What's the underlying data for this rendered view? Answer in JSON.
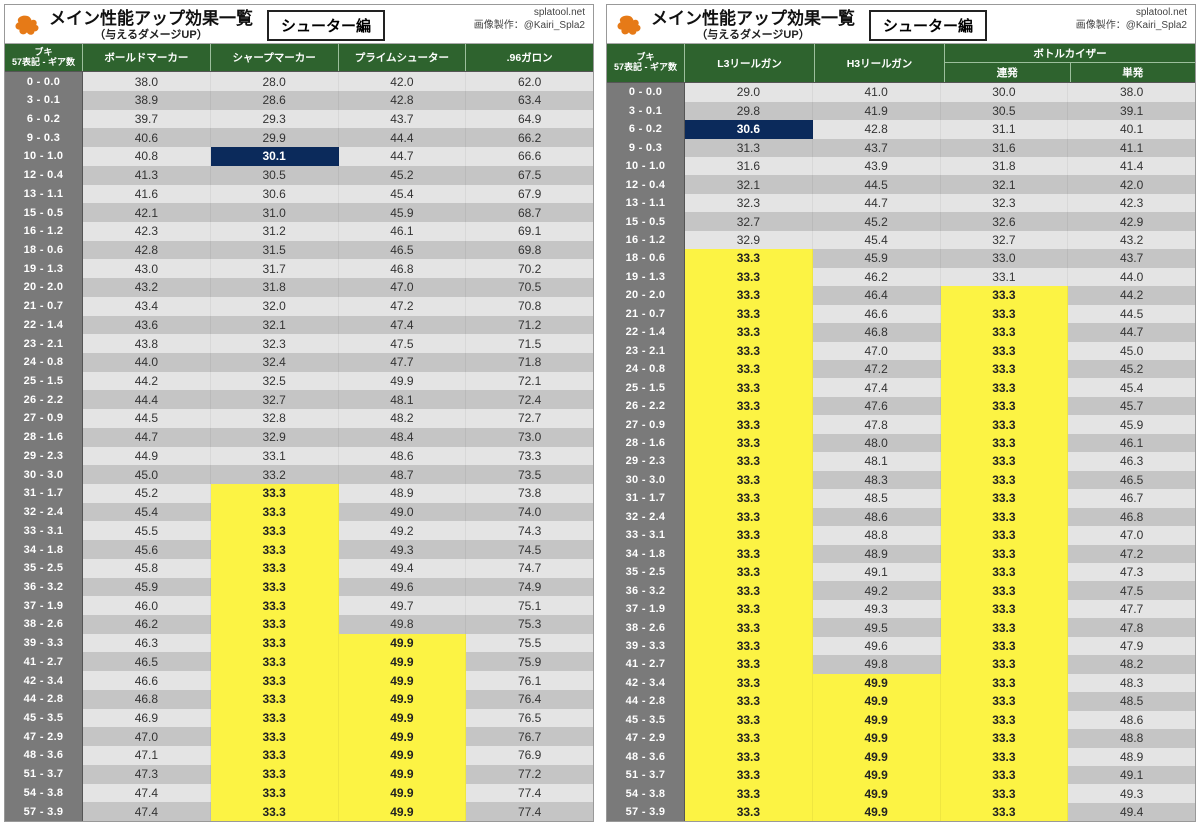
{
  "meta": {
    "title": "メイン性能アップ効果一覧",
    "subtitle": "（与えるダメージUP）",
    "category": "シューター編",
    "site": "splatool.net",
    "credit": "画像製作：@Kairi_Spla2",
    "buki_label": "ブキ",
    "key_header": "57表記 - ギア数",
    "highlight_yellow": "#fcf344",
    "highlight_navy": "#0b2a5b",
    "header_green": "#2e632e",
    "row_light": "#e4e4e4",
    "row_dark": "#c5c5c5",
    "key_bg": "#7a7a7a"
  },
  "keys": [
    "0 - 0.0",
    "3 - 0.1",
    "6 - 0.2",
    "9 - 0.3",
    "10 - 1.0",
    "12 - 0.4",
    "13 - 1.1",
    "15 - 0.5",
    "16 - 1.2",
    "18 - 0.6",
    "19 - 1.3",
    "20 - 2.0",
    "21 - 0.7",
    "22 - 1.4",
    "23 - 2.1",
    "24 - 0.8",
    "25 - 1.5",
    "26 - 2.2",
    "27 - 0.9",
    "28 - 1.6",
    "29 - 2.3",
    "30 - 3.0",
    "31 - 1.7",
    "32 - 2.4",
    "33 - 3.1",
    "34 - 1.8",
    "35 - 2.5",
    "36 - 3.2",
    "37 - 1.9",
    "38 - 2.6",
    "39 - 3.3",
    "41 - 2.7",
    "42 - 3.4",
    "44 - 2.8",
    "45 - 3.5",
    "47 - 2.9",
    "48 - 3.6",
    "51 - 3.7",
    "54 - 3.8",
    "57 - 3.9"
  ],
  "left": {
    "columns": [
      "ボールドマーカー",
      "シャープマーカー",
      "プライムシューター",
      ".96ガロン"
    ],
    "data": [
      [
        [
          "38.0",
          ""
        ],
        [
          "28.0",
          ""
        ],
        [
          "42.0",
          ""
        ],
        [
          "62.0",
          ""
        ]
      ],
      [
        [
          "38.9",
          ""
        ],
        [
          "28.6",
          ""
        ],
        [
          "42.8",
          ""
        ],
        [
          "63.4",
          ""
        ]
      ],
      [
        [
          "39.7",
          ""
        ],
        [
          "29.3",
          ""
        ],
        [
          "43.7",
          ""
        ],
        [
          "64.9",
          ""
        ]
      ],
      [
        [
          "40.6",
          ""
        ],
        [
          "29.9",
          ""
        ],
        [
          "44.4",
          ""
        ],
        [
          "66.2",
          ""
        ]
      ],
      [
        [
          "40.8",
          ""
        ],
        [
          "30.1",
          "navy"
        ],
        [
          "44.7",
          ""
        ],
        [
          "66.6",
          ""
        ]
      ],
      [
        [
          "41.3",
          ""
        ],
        [
          "30.5",
          ""
        ],
        [
          "45.2",
          ""
        ],
        [
          "67.5",
          ""
        ]
      ],
      [
        [
          "41.6",
          ""
        ],
        [
          "30.6",
          ""
        ],
        [
          "45.4",
          ""
        ],
        [
          "67.9",
          ""
        ]
      ],
      [
        [
          "42.1",
          ""
        ],
        [
          "31.0",
          ""
        ],
        [
          "45.9",
          ""
        ],
        [
          "68.7",
          ""
        ]
      ],
      [
        [
          "42.3",
          ""
        ],
        [
          "31.2",
          ""
        ],
        [
          "46.1",
          ""
        ],
        [
          "69.1",
          ""
        ]
      ],
      [
        [
          "42.8",
          ""
        ],
        [
          "31.5",
          ""
        ],
        [
          "46.5",
          ""
        ],
        [
          "69.8",
          ""
        ]
      ],
      [
        [
          "43.0",
          ""
        ],
        [
          "31.7",
          ""
        ],
        [
          "46.8",
          ""
        ],
        [
          "70.2",
          ""
        ]
      ],
      [
        [
          "43.2",
          ""
        ],
        [
          "31.8",
          ""
        ],
        [
          "47.0",
          ""
        ],
        [
          "70.5",
          ""
        ]
      ],
      [
        [
          "43.4",
          ""
        ],
        [
          "32.0",
          ""
        ],
        [
          "47.2",
          ""
        ],
        [
          "70.8",
          ""
        ]
      ],
      [
        [
          "43.6",
          ""
        ],
        [
          "32.1",
          ""
        ],
        [
          "47.4",
          ""
        ],
        [
          "71.2",
          ""
        ]
      ],
      [
        [
          "43.8",
          ""
        ],
        [
          "32.3",
          ""
        ],
        [
          "47.5",
          ""
        ],
        [
          "71.5",
          ""
        ]
      ],
      [
        [
          "44.0",
          ""
        ],
        [
          "32.4",
          ""
        ],
        [
          "47.7",
          ""
        ],
        [
          "71.8",
          ""
        ]
      ],
      [
        [
          "44.2",
          ""
        ],
        [
          "32.5",
          ""
        ],
        [
          "49.9",
          ""
        ],
        [
          "72.1",
          ""
        ]
      ],
      [
        [
          "44.4",
          ""
        ],
        [
          "32.7",
          ""
        ],
        [
          "48.1",
          ""
        ],
        [
          "72.4",
          ""
        ]
      ],
      [
        [
          "44.5",
          ""
        ],
        [
          "32.8",
          ""
        ],
        [
          "48.2",
          ""
        ],
        [
          "72.7",
          ""
        ]
      ],
      [
        [
          "44.7",
          ""
        ],
        [
          "32.9",
          ""
        ],
        [
          "48.4",
          ""
        ],
        [
          "73.0",
          ""
        ]
      ],
      [
        [
          "44.9",
          ""
        ],
        [
          "33.1",
          ""
        ],
        [
          "48.6",
          ""
        ],
        [
          "73.3",
          ""
        ]
      ],
      [
        [
          "45.0",
          ""
        ],
        [
          "33.2",
          ""
        ],
        [
          "48.7",
          ""
        ],
        [
          "73.5",
          ""
        ]
      ],
      [
        [
          "45.2",
          ""
        ],
        [
          "33.3",
          "yellow"
        ],
        [
          "48.9",
          ""
        ],
        [
          "73.8",
          ""
        ]
      ],
      [
        [
          "45.4",
          ""
        ],
        [
          "33.3",
          "yellow"
        ],
        [
          "49.0",
          ""
        ],
        [
          "74.0",
          ""
        ]
      ],
      [
        [
          "45.5",
          ""
        ],
        [
          "33.3",
          "yellow"
        ],
        [
          "49.2",
          ""
        ],
        [
          "74.3",
          ""
        ]
      ],
      [
        [
          "45.6",
          ""
        ],
        [
          "33.3",
          "yellow"
        ],
        [
          "49.3",
          ""
        ],
        [
          "74.5",
          ""
        ]
      ],
      [
        [
          "45.8",
          ""
        ],
        [
          "33.3",
          "yellow"
        ],
        [
          "49.4",
          ""
        ],
        [
          "74.7",
          ""
        ]
      ],
      [
        [
          "45.9",
          ""
        ],
        [
          "33.3",
          "yellow"
        ],
        [
          "49.6",
          ""
        ],
        [
          "74.9",
          ""
        ]
      ],
      [
        [
          "46.0",
          ""
        ],
        [
          "33.3",
          "yellow"
        ],
        [
          "49.7",
          ""
        ],
        [
          "75.1",
          ""
        ]
      ],
      [
        [
          "46.2",
          ""
        ],
        [
          "33.3",
          "yellow"
        ],
        [
          "49.8",
          ""
        ],
        [
          "75.3",
          ""
        ]
      ],
      [
        [
          "46.3",
          ""
        ],
        [
          "33.3",
          "yellow"
        ],
        [
          "49.9",
          "yellow"
        ],
        [
          "75.5",
          ""
        ]
      ],
      [
        [
          "46.5",
          ""
        ],
        [
          "33.3",
          "yellow"
        ],
        [
          "49.9",
          "yellow"
        ],
        [
          "75.9",
          ""
        ]
      ],
      [
        [
          "46.6",
          ""
        ],
        [
          "33.3",
          "yellow"
        ],
        [
          "49.9",
          "yellow"
        ],
        [
          "76.1",
          ""
        ]
      ],
      [
        [
          "46.8",
          ""
        ],
        [
          "33.3",
          "yellow"
        ],
        [
          "49.9",
          "yellow"
        ],
        [
          "76.4",
          ""
        ]
      ],
      [
        [
          "46.9",
          ""
        ],
        [
          "33.3",
          "yellow"
        ],
        [
          "49.9",
          "yellow"
        ],
        [
          "76.5",
          ""
        ]
      ],
      [
        [
          "47.0",
          ""
        ],
        [
          "33.3",
          "yellow"
        ],
        [
          "49.9",
          "yellow"
        ],
        [
          "76.7",
          ""
        ]
      ],
      [
        [
          "47.1",
          ""
        ],
        [
          "33.3",
          "yellow"
        ],
        [
          "49.9",
          "yellow"
        ],
        [
          "76.9",
          ""
        ]
      ],
      [
        [
          "47.3",
          ""
        ],
        [
          "33.3",
          "yellow"
        ],
        [
          "49.9",
          "yellow"
        ],
        [
          "77.2",
          ""
        ]
      ],
      [
        [
          "47.4",
          ""
        ],
        [
          "33.3",
          "yellow"
        ],
        [
          "49.9",
          "yellow"
        ],
        [
          "77.4",
          ""
        ]
      ],
      [
        [
          "47.4",
          ""
        ],
        [
          "33.3",
          "yellow"
        ],
        [
          "49.9",
          "yellow"
        ],
        [
          "77.4",
          ""
        ]
      ]
    ]
  },
  "right": {
    "columns_simple": [
      "L3リールガン",
      "H3リールガン"
    ],
    "group_name": "ボトルカイザー",
    "group_sub": [
      "連発",
      "単発"
    ],
    "data": [
      [
        [
          "29.0",
          ""
        ],
        [
          "41.0",
          ""
        ],
        [
          "30.0",
          ""
        ],
        [
          "38.0",
          ""
        ]
      ],
      [
        [
          "29.8",
          ""
        ],
        [
          "41.9",
          ""
        ],
        [
          "30.5",
          ""
        ],
        [
          "39.1",
          ""
        ]
      ],
      [
        [
          "30.6",
          "navy"
        ],
        [
          "42.8",
          ""
        ],
        [
          "31.1",
          ""
        ],
        [
          "40.1",
          ""
        ]
      ],
      [
        [
          "31.3",
          ""
        ],
        [
          "43.7",
          ""
        ],
        [
          "31.6",
          ""
        ],
        [
          "41.1",
          ""
        ]
      ],
      [
        [
          "31.6",
          ""
        ],
        [
          "43.9",
          ""
        ],
        [
          "31.8",
          ""
        ],
        [
          "41.4",
          ""
        ]
      ],
      [
        [
          "32.1",
          ""
        ],
        [
          "44.5",
          ""
        ],
        [
          "32.1",
          ""
        ],
        [
          "42.0",
          ""
        ]
      ],
      [
        [
          "32.3",
          ""
        ],
        [
          "44.7",
          ""
        ],
        [
          "32.3",
          ""
        ],
        [
          "42.3",
          ""
        ]
      ],
      [
        [
          "32.7",
          ""
        ],
        [
          "45.2",
          ""
        ],
        [
          "32.6",
          ""
        ],
        [
          "42.9",
          ""
        ]
      ],
      [
        [
          "32.9",
          ""
        ],
        [
          "45.4",
          ""
        ],
        [
          "32.7",
          ""
        ],
        [
          "43.2",
          ""
        ]
      ],
      [
        [
          "33.3",
          "yellow"
        ],
        [
          "45.9",
          ""
        ],
        [
          "33.0",
          ""
        ],
        [
          "43.7",
          ""
        ]
      ],
      [
        [
          "33.3",
          "yellow"
        ],
        [
          "46.2",
          ""
        ],
        [
          "33.1",
          ""
        ],
        [
          "44.0",
          ""
        ]
      ],
      [
        [
          "33.3",
          "yellow"
        ],
        [
          "46.4",
          ""
        ],
        [
          "33.3",
          "yellow"
        ],
        [
          "44.2",
          ""
        ]
      ],
      [
        [
          "33.3",
          "yellow"
        ],
        [
          "46.6",
          ""
        ],
        [
          "33.3",
          "yellow"
        ],
        [
          "44.5",
          ""
        ]
      ],
      [
        [
          "33.3",
          "yellow"
        ],
        [
          "46.8",
          ""
        ],
        [
          "33.3",
          "yellow"
        ],
        [
          "44.7",
          ""
        ]
      ],
      [
        [
          "33.3",
          "yellow"
        ],
        [
          "47.0",
          ""
        ],
        [
          "33.3",
          "yellow"
        ],
        [
          "45.0",
          ""
        ]
      ],
      [
        [
          "33.3",
          "yellow"
        ],
        [
          "47.2",
          ""
        ],
        [
          "33.3",
          "yellow"
        ],
        [
          "45.2",
          ""
        ]
      ],
      [
        [
          "33.3",
          "yellow"
        ],
        [
          "47.4",
          ""
        ],
        [
          "33.3",
          "yellow"
        ],
        [
          "45.4",
          ""
        ]
      ],
      [
        [
          "33.3",
          "yellow"
        ],
        [
          "47.6",
          ""
        ],
        [
          "33.3",
          "yellow"
        ],
        [
          "45.7",
          ""
        ]
      ],
      [
        [
          "33.3",
          "yellow"
        ],
        [
          "47.8",
          ""
        ],
        [
          "33.3",
          "yellow"
        ],
        [
          "45.9",
          ""
        ]
      ],
      [
        [
          "33.3",
          "yellow"
        ],
        [
          "48.0",
          ""
        ],
        [
          "33.3",
          "yellow"
        ],
        [
          "46.1",
          ""
        ]
      ],
      [
        [
          "33.3",
          "yellow"
        ],
        [
          "48.1",
          ""
        ],
        [
          "33.3",
          "yellow"
        ],
        [
          "46.3",
          ""
        ]
      ],
      [
        [
          "33.3",
          "yellow"
        ],
        [
          "48.3",
          ""
        ],
        [
          "33.3",
          "yellow"
        ],
        [
          "46.5",
          ""
        ]
      ],
      [
        [
          "33.3",
          "yellow"
        ],
        [
          "48.5",
          ""
        ],
        [
          "33.3",
          "yellow"
        ],
        [
          "46.7",
          ""
        ]
      ],
      [
        [
          "33.3",
          "yellow"
        ],
        [
          "48.6",
          ""
        ],
        [
          "33.3",
          "yellow"
        ],
        [
          "46.8",
          ""
        ]
      ],
      [
        [
          "33.3",
          "yellow"
        ],
        [
          "48.8",
          ""
        ],
        [
          "33.3",
          "yellow"
        ],
        [
          "47.0",
          ""
        ]
      ],
      [
        [
          "33.3",
          "yellow"
        ],
        [
          "48.9",
          ""
        ],
        [
          "33.3",
          "yellow"
        ],
        [
          "47.2",
          ""
        ]
      ],
      [
        [
          "33.3",
          "yellow"
        ],
        [
          "49.1",
          ""
        ],
        [
          "33.3",
          "yellow"
        ],
        [
          "47.3",
          ""
        ]
      ],
      [
        [
          "33.3",
          "yellow"
        ],
        [
          "49.2",
          ""
        ],
        [
          "33.3",
          "yellow"
        ],
        [
          "47.5",
          ""
        ]
      ],
      [
        [
          "33.3",
          "yellow"
        ],
        [
          "49.3",
          ""
        ],
        [
          "33.3",
          "yellow"
        ],
        [
          "47.7",
          ""
        ]
      ],
      [
        [
          "33.3",
          "yellow"
        ],
        [
          "49.5",
          ""
        ],
        [
          "33.3",
          "yellow"
        ],
        [
          "47.8",
          ""
        ]
      ],
      [
        [
          "33.3",
          "yellow"
        ],
        [
          "49.6",
          ""
        ],
        [
          "33.3",
          "yellow"
        ],
        [
          "47.9",
          ""
        ]
      ],
      [
        [
          "33.3",
          "yellow"
        ],
        [
          "49.8",
          ""
        ],
        [
          "33.3",
          "yellow"
        ],
        [
          "48.2",
          ""
        ]
      ],
      [
        [
          "33.3",
          "yellow"
        ],
        [
          "49.9",
          "yellow"
        ],
        [
          "33.3",
          "yellow"
        ],
        [
          "48.3",
          ""
        ]
      ],
      [
        [
          "33.3",
          "yellow"
        ],
        [
          "49.9",
          "yellow"
        ],
        [
          "33.3",
          "yellow"
        ],
        [
          "48.5",
          ""
        ]
      ],
      [
        [
          "33.3",
          "yellow"
        ],
        [
          "49.9",
          "yellow"
        ],
        [
          "33.3",
          "yellow"
        ],
        [
          "48.6",
          ""
        ]
      ],
      [
        [
          "33.3",
          "yellow"
        ],
        [
          "49.9",
          "yellow"
        ],
        [
          "33.3",
          "yellow"
        ],
        [
          "48.8",
          ""
        ]
      ],
      [
        [
          "33.3",
          "yellow"
        ],
        [
          "49.9",
          "yellow"
        ],
        [
          "33.3",
          "yellow"
        ],
        [
          "48.9",
          ""
        ]
      ],
      [
        [
          "33.3",
          "yellow"
        ],
        [
          "49.9",
          "yellow"
        ],
        [
          "33.3",
          "yellow"
        ],
        [
          "49.1",
          ""
        ]
      ],
      [
        [
          "33.3",
          "yellow"
        ],
        [
          "49.9",
          "yellow"
        ],
        [
          "33.3",
          "yellow"
        ],
        [
          "49.3",
          ""
        ]
      ],
      [
        [
          "33.3",
          "yellow"
        ],
        [
          "49.9",
          "yellow"
        ],
        [
          "33.3",
          "yellow"
        ],
        [
          "49.4",
          ""
        ]
      ]
    ]
  }
}
